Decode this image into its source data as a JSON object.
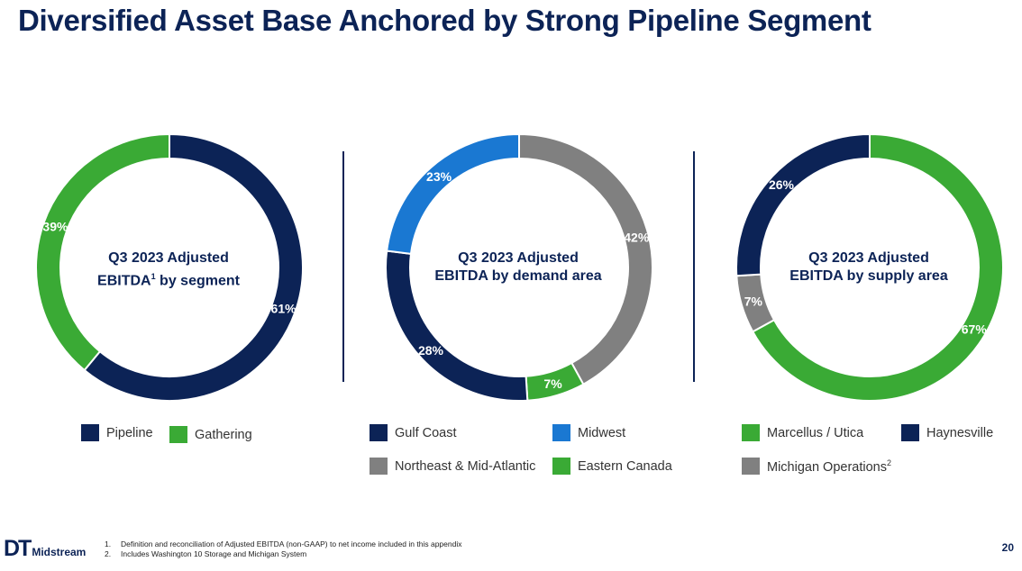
{
  "title": "Diversified Asset Base Anchored by Strong Pipeline Segment",
  "colors": {
    "navy": "#0c2356",
    "green": "#3aaa35",
    "gray": "#808080",
    "blue": "#1a78d2"
  },
  "chart_data": [
    {
      "type": "pie",
      "donut": true,
      "center_title": "Q3 2023 Adjusted",
      "center_subtitle_prefix": "EBITDA",
      "center_subtitle_sup": "1",
      "center_subtitle_suffix": " by segment",
      "categories": [
        "Pipeline",
        "Gathering"
      ],
      "values": [
        61,
        39
      ],
      "labels": [
        "61%",
        "39%"
      ],
      "colors": [
        "#0c2356",
        "#3aaa35"
      ]
    },
    {
      "type": "pie",
      "donut": true,
      "center_title": "Q3 2023 Adjusted",
      "center_subtitle": "EBITDA by demand area",
      "categories": [
        "Northeast & Mid-Atlantic",
        "Eastern Canada",
        "Gulf Coast",
        "Midwest"
      ],
      "values": [
        42,
        7,
        28,
        23
      ],
      "labels": [
        "42%",
        "7%",
        "28%",
        "23%"
      ],
      "colors": [
        "#808080",
        "#3aaa35",
        "#0c2356",
        "#1a78d2"
      ]
    },
    {
      "type": "pie",
      "donut": true,
      "center_title": "Q3 2023 Adjusted",
      "center_subtitle": "EBITDA by supply area",
      "categories": [
        "Marcellus / Utica",
        "Michigan Operations",
        "Haynesville"
      ],
      "values": [
        67,
        7,
        26
      ],
      "labels": [
        "67%",
        "7%",
        "26%"
      ],
      "colors": [
        "#3aaa35",
        "#808080",
        "#0c2356"
      ]
    }
  ],
  "legends": {
    "segment": [
      {
        "label": "Pipeline",
        "color": "#0c2356"
      },
      {
        "label": "Gathering",
        "color": "#3aaa35"
      }
    ],
    "demand": [
      {
        "label": "Gulf Coast",
        "color": "#0c2356"
      },
      {
        "label": "Midwest",
        "color": "#1a78d2"
      },
      {
        "label": "Northeast & Mid-Atlantic",
        "color": "#808080"
      },
      {
        "label": "Eastern Canada",
        "color": "#3aaa35"
      }
    ],
    "supply": [
      {
        "label": "Marcellus / Utica",
        "color": "#3aaa35"
      },
      {
        "label": "Haynesville",
        "color": "#0c2356"
      },
      {
        "label": "Michigan Operations",
        "sup": "2",
        "color": "#808080"
      }
    ]
  },
  "footnotes": [
    {
      "num": "1.",
      "text": "Definition and reconciliation of Adjusted EBITDA (non-GAAP) to net income included in this appendix"
    },
    {
      "num": "2.",
      "text": "Includes Washington 10 Storage and Michigan System"
    }
  ],
  "logo": {
    "dt": "DT",
    "name": "Midstream"
  },
  "page_number": "20"
}
